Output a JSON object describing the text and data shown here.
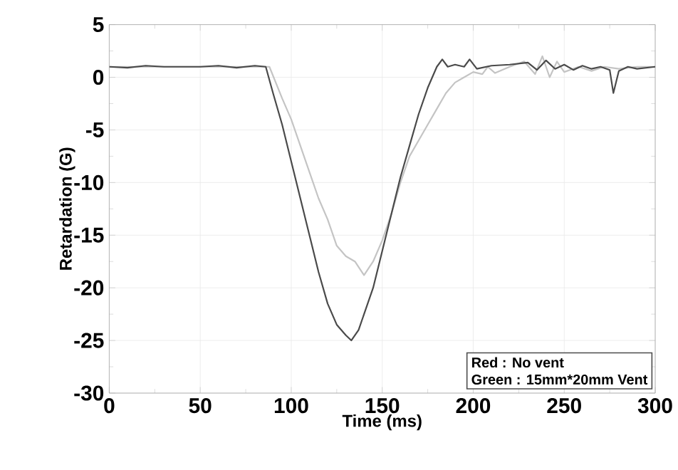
{
  "chart_data": {
    "type": "line",
    "xlabel": "Time (ms)",
    "ylabel": "Retardation (G)",
    "xlim": [
      0,
      300
    ],
    "ylim": [
      -30,
      5
    ],
    "xticks": [
      0,
      50,
      100,
      150,
      200,
      250,
      300
    ],
    "yticks": [
      -30,
      -25,
      -20,
      -15,
      -10,
      -5,
      0,
      5
    ],
    "grid": true,
    "marker": "none",
    "line_style": "solid",
    "series": [
      {
        "color": "#c4c4c4",
        "x": [
          0,
          20,
          40,
          60,
          80,
          88,
          95,
          100,
          105,
          110,
          115,
          120,
          125,
          130,
          135,
          140,
          145,
          150,
          155,
          160,
          165,
          170,
          175,
          180,
          185,
          190,
          195,
          200,
          205,
          208,
          212,
          220,
          228,
          234,
          238,
          242,
          246,
          250,
          258,
          265,
          272,
          280,
          290,
          300
        ],
        "values": [
          1,
          1,
          1,
          1,
          1,
          1,
          -2,
          -4,
          -6.5,
          -9,
          -11.5,
          -13.5,
          -16,
          -17,
          -17.5,
          -18.8,
          -17.5,
          -15.5,
          -13,
          -10,
          -7.5,
          -6,
          -4.5,
          -3,
          -1.5,
          -0.5,
          0,
          0.5,
          0.3,
          1,
          0.4,
          1,
          1.5,
          0.3,
          2,
          0,
          1.5,
          0.5,
          1,
          0.6,
          1,
          0.8,
          1,
          1
        ]
      },
      {
        "color": "#4a4a4a",
        "x": [
          0,
          10,
          20,
          30,
          40,
          50,
          60,
          70,
          80,
          86,
          90,
          95,
          100,
          105,
          110,
          115,
          120,
          125,
          130,
          133,
          137,
          140,
          145,
          150,
          155,
          160,
          165,
          170,
          175,
          180,
          183,
          186,
          190,
          195,
          198,
          202,
          210,
          220,
          230,
          235,
          240,
          245,
          250,
          255,
          260,
          265,
          270,
          275,
          277,
          280,
          285,
          290,
          300
        ],
        "values": [
          1,
          0.9,
          1.1,
          1,
          1,
          1,
          1.1,
          0.9,
          1.1,
          1,
          -1.5,
          -4.5,
          -8,
          -11.5,
          -15,
          -18.5,
          -21.5,
          -23.5,
          -24.5,
          -25,
          -24,
          -22.5,
          -20,
          -16.5,
          -13,
          -9.5,
          -6.5,
          -3.5,
          -1,
          1,
          1.7,
          1,
          1.2,
          1,
          1.7,
          0.8,
          1.1,
          1.2,
          1.4,
          0.7,
          1.6,
          0.8,
          1.2,
          0.7,
          1.1,
          0.8,
          1,
          0.7,
          -1.5,
          0.6,
          1,
          0.8,
          1
        ]
      }
    ],
    "annotations": [
      "Red    : No vent",
      "Green : 15mm*20mm Vent"
    ]
  }
}
